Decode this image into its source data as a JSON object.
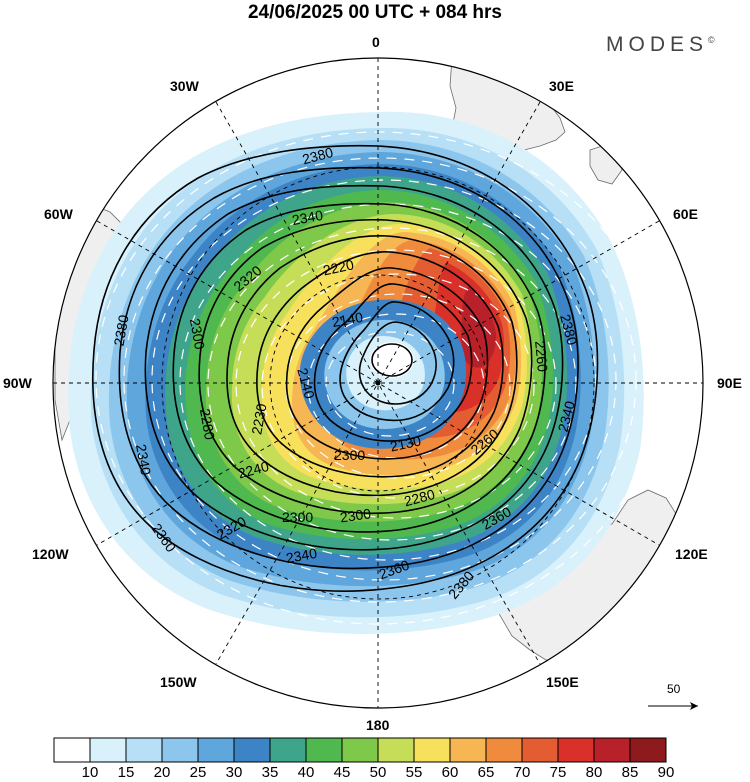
{
  "header": {
    "title": "24/06/2025  00 UTC  + 084 hrs",
    "brand": "MODES",
    "brand_mark": "©"
  },
  "map": {
    "projection": "polar stereographic (south pole)",
    "longitude_labels": {
      "lon_0": "0",
      "lon_30w": "30W",
      "lon_30e": "30E",
      "lon_60w": "60W",
      "lon_60e": "60E",
      "lon_90w": "90W",
      "lon_90e": "90E",
      "lon_120w": "120W",
      "lon_120e": "120E",
      "lon_150w": "150W",
      "lon_150e": "150E",
      "lon_180": "180"
    },
    "contour_labels": [
      "2380",
      "2340",
      "2320",
      "2220",
      "2300",
      "2140",
      "2280",
      "2230",
      "2140",
      "2300",
      "2240",
      "2130",
      "2260",
      "2280",
      "2300",
      "2300",
      "2320",
      "2340",
      "2360",
      "2360",
      "2340",
      "2380",
      "2380",
      "2340",
      "2360",
      "2380",
      "2260"
    ],
    "reference_vector": "50",
    "colors": {
      "land": "#efefef",
      "coastline": "#6b6b6b",
      "contour": "#000000",
      "wind_arrow": "#ffffff"
    }
  },
  "colorbar": {
    "labels": [
      "10",
      "15",
      "20",
      "25",
      "30",
      "35",
      "40",
      "45",
      "50",
      "55",
      "60",
      "65",
      "70",
      "75",
      "80",
      "85",
      "90"
    ],
    "colors": [
      "#ffffff",
      "#d8f1fb",
      "#b7e0f6",
      "#8cc6ec",
      "#5ea6dc",
      "#3c84c5",
      "#3fa58a",
      "#4fb84f",
      "#7ec84a",
      "#c6dd58",
      "#f6e05c",
      "#f6b653",
      "#f08b3e",
      "#e45d32",
      "#d93029",
      "#b8202a",
      "#8e1a1e"
    ]
  }
}
